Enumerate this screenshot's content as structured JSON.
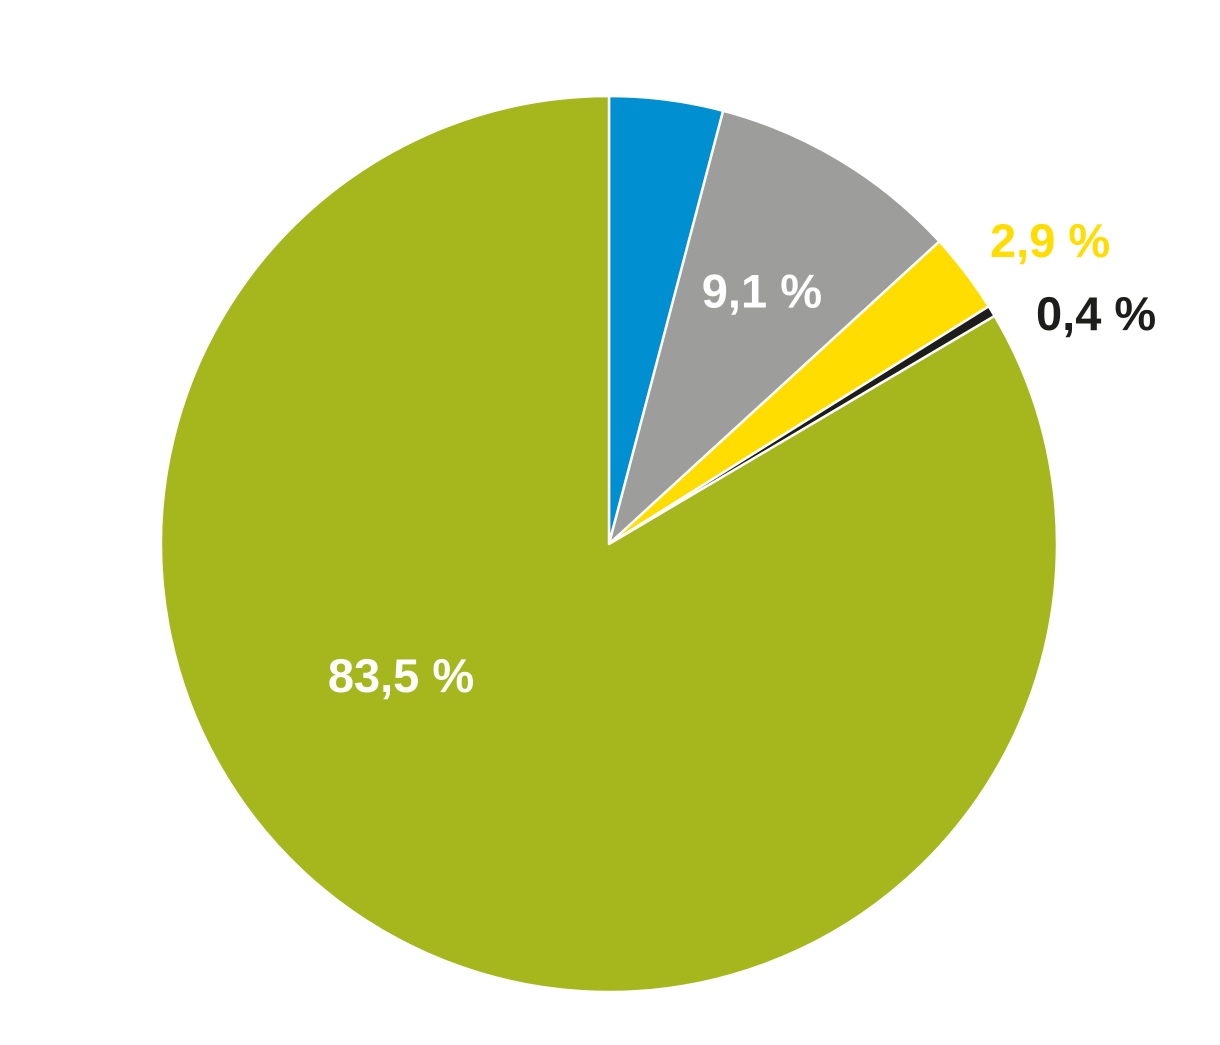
{
  "chart_data": {
    "type": "pie",
    "start": "12 o'clock",
    "direction": "clockwise",
    "slices": [
      {
        "value": 4.1,
        "label": "",
        "color": "#008fd0"
      },
      {
        "value": 9.1,
        "label": "9,1 %",
        "color": "#9d9d9c",
        "label_color": "#ffffff",
        "label_position": "inside"
      },
      {
        "value": 2.9,
        "label": "2,9 %",
        "color": "#ffdd00",
        "label_color": "#ffdd00",
        "label_position": "outside"
      },
      {
        "value": 0.4,
        "label": "0,4 %",
        "color": "#1d1d1b",
        "label_color": "#1d1d1b",
        "label_position": "outside"
      },
      {
        "value": 83.5,
        "label": "83,5 %",
        "color": "#a5b71d",
        "label_color": "#ffffff",
        "label_position": "inside"
      }
    ],
    "slice_separator_color": "#ffffff"
  }
}
